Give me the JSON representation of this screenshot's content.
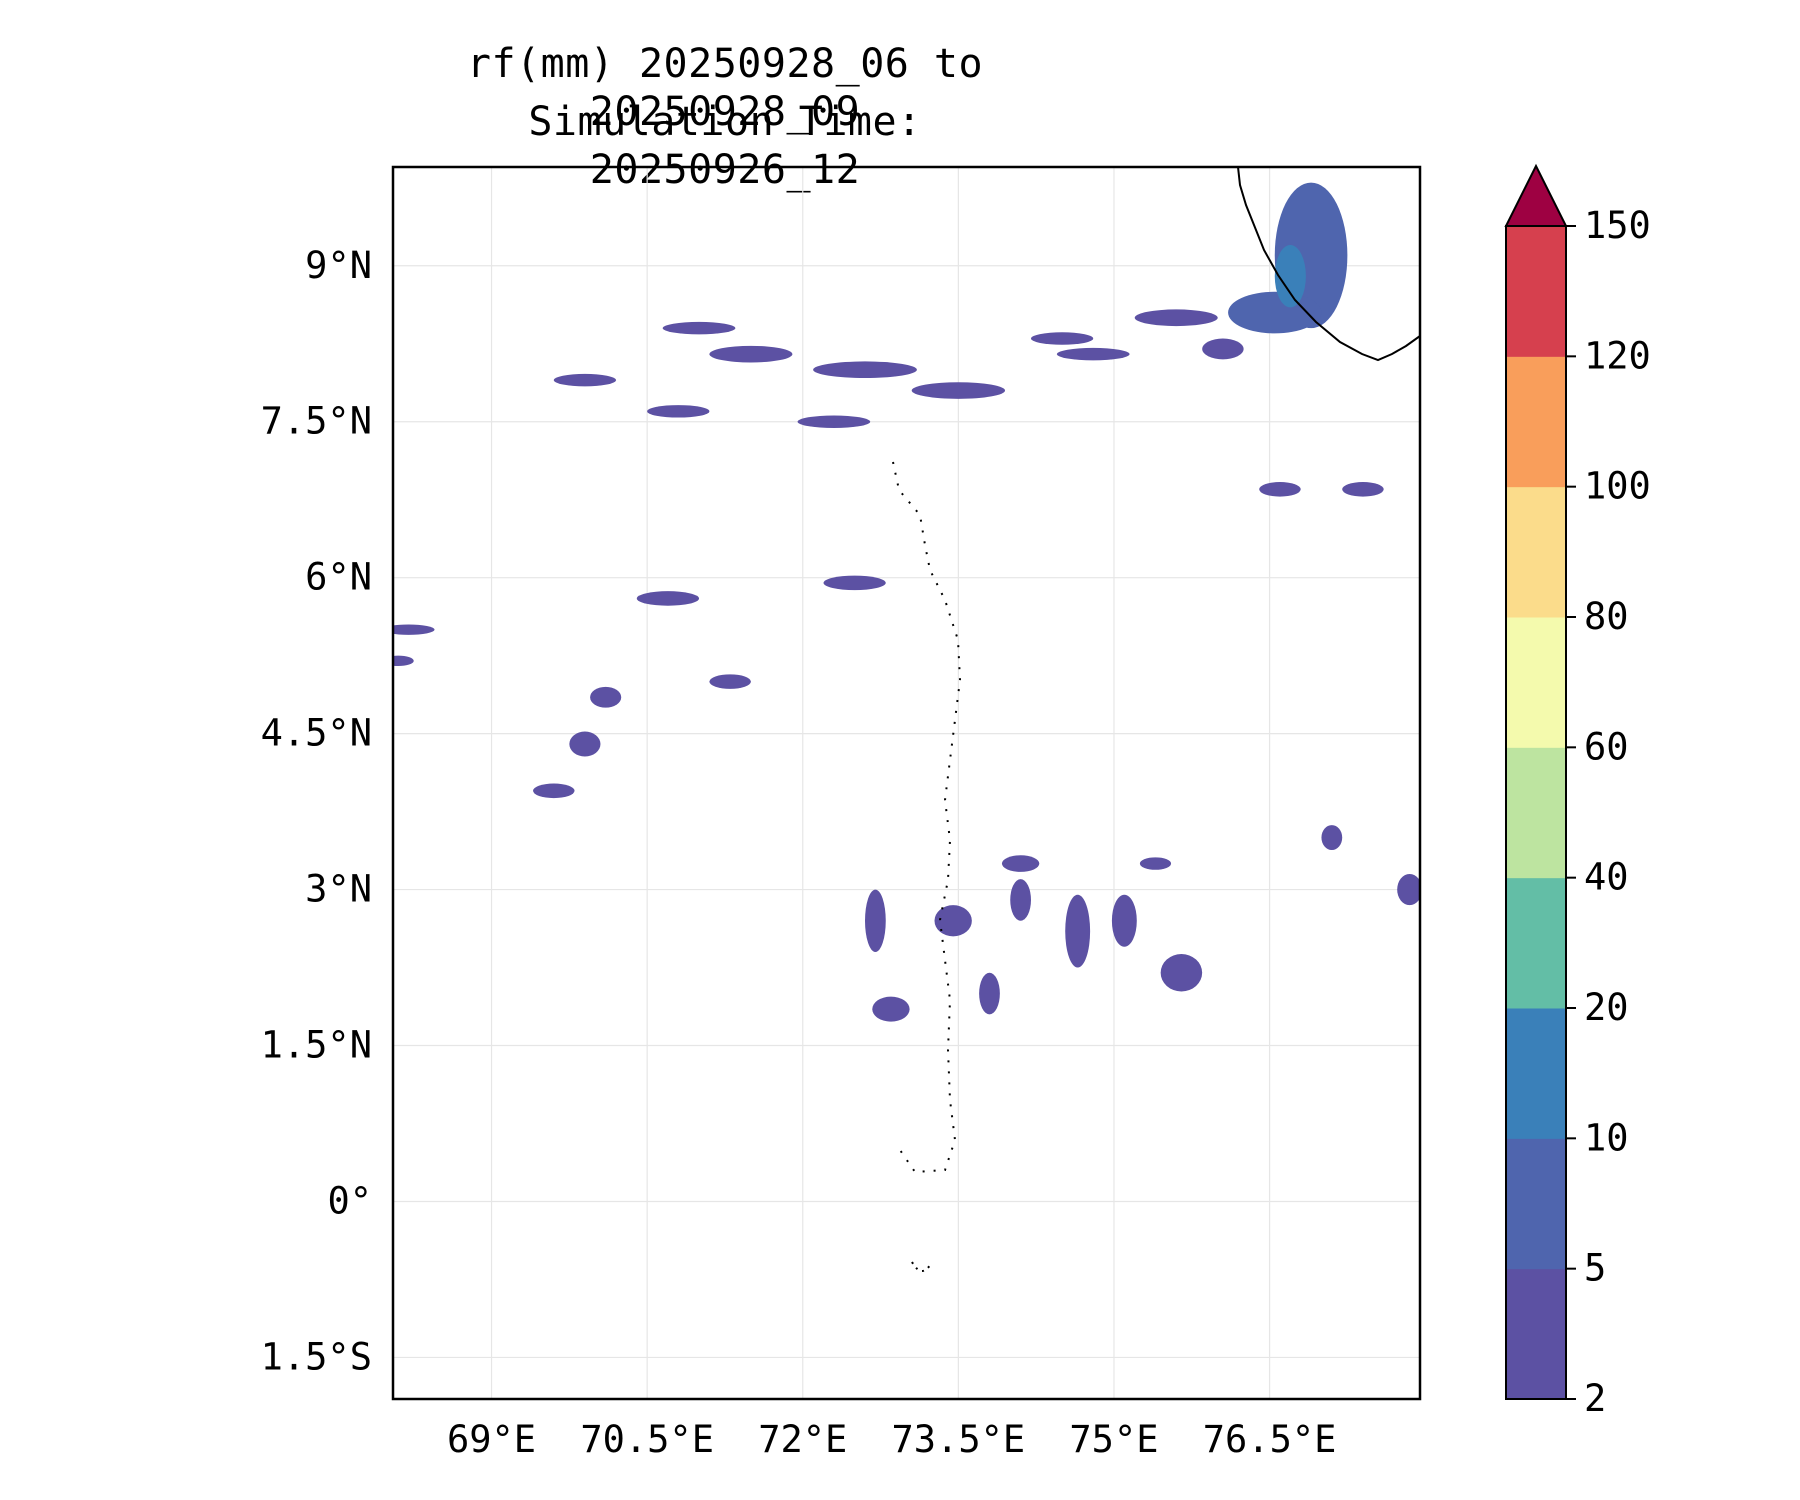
{
  "title": {
    "line1": "rf(mm) 20250928_06 to 20250928_09",
    "line2": "Simulation Time: 20250926_12"
  },
  "map": {
    "lon_ticks": [
      "69°E",
      "70.5°E",
      "72°E",
      "73.5°E",
      "75°E",
      "76.5°E"
    ],
    "lat_ticks": [
      "9°N",
      "7.5°N",
      "6°N",
      "4.5°N",
      "3°N",
      "1.5°N",
      "0°",
      "1.5°S"
    ],
    "lon_values": [
      69,
      70.5,
      72,
      73.5,
      75,
      76.5
    ],
    "lat_values": [
      9,
      7.5,
      6,
      4.5,
      3,
      1.5,
      0,
      -1.5
    ],
    "lon_range": [
      68.05,
      77.95
    ],
    "lat_range": [
      -1.9,
      9.95
    ],
    "gridlines": true
  },
  "chart_data": {
    "type": "heatmap",
    "title": "rf(mm) 20250928_06 to 20250928_09",
    "subtitle": "Simulation Time: 20250926_12",
    "xlabel": "",
    "ylabel": "",
    "xlim": [
      68.05,
      77.95
    ],
    "ylim": [
      -1.9,
      9.95
    ],
    "colorbar": {
      "levels": [
        "2",
        "5",
        "10",
        "20",
        "40",
        "60",
        "80",
        "100",
        "120",
        "150"
      ],
      "colors": [
        "#5c51a3",
        "#4f65ae",
        "#3a80b9",
        "#63bea6",
        "#bde4a0",
        "#f4faad",
        "#fbdc8b",
        "#f99e5b",
        "#d6404e",
        "#9e0142"
      ],
      "extend": "max"
    },
    "rain_cells": [
      {
        "lon": 76.9,
        "lat": 9.1,
        "rx": 0.35,
        "ry": 0.7,
        "level": 1
      },
      {
        "lon": 76.55,
        "lat": 8.55,
        "rx": 0.45,
        "ry": 0.2,
        "level": 1
      },
      {
        "lon": 76.7,
        "lat": 8.9,
        "rx": 0.15,
        "ry": 0.3,
        "level": 2
      },
      {
        "lon": 75.6,
        "lat": 8.5,
        "rx": 0.4,
        "ry": 0.08,
        "level": 0
      },
      {
        "lon": 74.5,
        "lat": 8.3,
        "rx": 0.3,
        "ry": 0.06,
        "level": 0
      },
      {
        "lon": 76.05,
        "lat": 8.2,
        "rx": 0.2,
        "ry": 0.1,
        "level": 0
      },
      {
        "lon": 74.8,
        "lat": 8.15,
        "rx": 0.35,
        "ry": 0.06,
        "level": 0
      },
      {
        "lon": 71.5,
        "lat": 8.15,
        "rx": 0.4,
        "ry": 0.08,
        "level": 0
      },
      {
        "lon": 71.0,
        "lat": 8.4,
        "rx": 0.35,
        "ry": 0.06,
        "level": 0
      },
      {
        "lon": 72.6,
        "lat": 8.0,
        "rx": 0.5,
        "ry": 0.08,
        "level": 0
      },
      {
        "lon": 73.5,
        "lat": 7.8,
        "rx": 0.45,
        "ry": 0.08,
        "level": 0
      },
      {
        "lon": 72.3,
        "lat": 7.5,
        "rx": 0.35,
        "ry": 0.06,
        "level": 0
      },
      {
        "lon": 70.8,
        "lat": 7.6,
        "rx": 0.3,
        "ry": 0.06,
        "level": 0
      },
      {
        "lon": 69.9,
        "lat": 7.9,
        "rx": 0.3,
        "ry": 0.06,
        "level": 0
      },
      {
        "lon": 72.5,
        "lat": 5.95,
        "rx": 0.3,
        "ry": 0.07,
        "level": 0
      },
      {
        "lon": 70.7,
        "lat": 5.8,
        "rx": 0.3,
        "ry": 0.07,
        "level": 0
      },
      {
        "lon": 70.1,
        "lat": 4.85,
        "rx": 0.15,
        "ry": 0.1,
        "level": 0
      },
      {
        "lon": 69.9,
        "lat": 4.4,
        "rx": 0.15,
        "ry": 0.12,
        "level": 0
      },
      {
        "lon": 69.6,
        "lat": 3.95,
        "rx": 0.2,
        "ry": 0.07,
        "level": 0
      },
      {
        "lon": 71.3,
        "lat": 5.0,
        "rx": 0.2,
        "ry": 0.07,
        "level": 0
      },
      {
        "lon": 68.2,
        "lat": 5.5,
        "rx": 0.25,
        "ry": 0.05,
        "level": 0
      },
      {
        "lon": 68.1,
        "lat": 5.2,
        "rx": 0.15,
        "ry": 0.05,
        "level": 0
      },
      {
        "lon": 74.1,
        "lat": 3.25,
        "rx": 0.18,
        "ry": 0.08,
        "level": 0
      },
      {
        "lon": 72.7,
        "lat": 2.7,
        "rx": 0.1,
        "ry": 0.3,
        "level": 0
      },
      {
        "lon": 73.45,
        "lat": 2.7,
        "rx": 0.18,
        "ry": 0.15,
        "level": 0
      },
      {
        "lon": 74.1,
        "lat": 2.9,
        "rx": 0.1,
        "ry": 0.2,
        "level": 0
      },
      {
        "lon": 74.65,
        "lat": 2.6,
        "rx": 0.12,
        "ry": 0.35,
        "level": 0
      },
      {
        "lon": 75.1,
        "lat": 2.7,
        "rx": 0.12,
        "ry": 0.25,
        "level": 0
      },
      {
        "lon": 75.65,
        "lat": 2.2,
        "rx": 0.2,
        "ry": 0.18,
        "level": 0
      },
      {
        "lon": 73.8,
        "lat": 2.0,
        "rx": 0.1,
        "ry": 0.2,
        "level": 0
      },
      {
        "lon": 72.85,
        "lat": 1.85,
        "rx": 0.18,
        "ry": 0.12,
        "level": 0
      },
      {
        "lon": 75.4,
        "lat": 3.25,
        "rx": 0.15,
        "ry": 0.06,
        "level": 0
      },
      {
        "lon": 76.6,
        "lat": 6.85,
        "rx": 0.2,
        "ry": 0.07,
        "level": 0
      },
      {
        "lon": 77.4,
        "lat": 6.85,
        "rx": 0.2,
        "ry": 0.07,
        "level": 0
      },
      {
        "lon": 77.1,
        "lat": 3.5,
        "rx": 0.1,
        "ry": 0.12,
        "level": 0
      },
      {
        "lon": 77.85,
        "lat": 3.0,
        "rx": 0.12,
        "ry": 0.15,
        "level": 0
      }
    ]
  }
}
